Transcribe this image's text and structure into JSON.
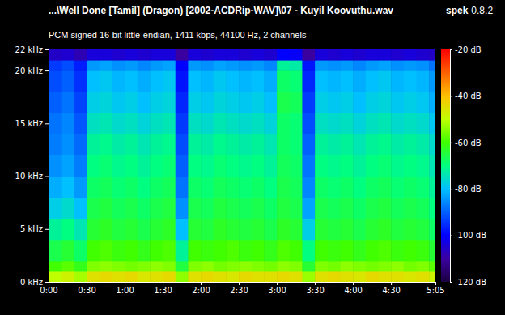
{
  "chart_data": {
    "type": "heatmap",
    "title": "...\\Well Done [Tamil] (Dragon) [2002-ACDRip-WAV]\\07 - Kuyil Koovuthu.wav",
    "subtitle": "PCM signed 16-bit little-endian, 1411 kbps, 44100 Hz, 2 channels",
    "annotations": [
      "spek",
      "0.8.2"
    ],
    "x": [
      0,
      10,
      20,
      30,
      40,
      50,
      60,
      70,
      80,
      90,
      100,
      110,
      120,
      130,
      140,
      150,
      160,
      170,
      180,
      190,
      200,
      210,
      220,
      230,
      240,
      250,
      260,
      270,
      280,
      290,
      300
    ],
    "y": [
      0,
      1,
      2,
      4,
      6,
      8,
      10,
      12,
      14,
      16,
      18,
      20,
      21
    ],
    "xlim": [
      0,
      305
    ],
    "ylim": [
      0,
      22
    ],
    "xticks": [
      {
        "value": 0,
        "label": "0:00"
      },
      {
        "value": 30,
        "label": "0:30"
      },
      {
        "value": 60,
        "label": "1:00"
      },
      {
        "value": 90,
        "label": "1:30"
      },
      {
        "value": 120,
        "label": "2:00"
      },
      {
        "value": 150,
        "label": "2:30"
      },
      {
        "value": 180,
        "label": "3:00"
      },
      {
        "value": 210,
        "label": "3:30"
      },
      {
        "value": 240,
        "label": "4:00"
      },
      {
        "value": 270,
        "label": "4:30"
      },
      {
        "value": 305,
        "label": "5:05"
      }
    ],
    "yticks": [
      {
        "value": 0,
        "label": "0 kHz"
      },
      {
        "value": 5,
        "label": "5 kHz"
      },
      {
        "value": 10,
        "label": "10 kHz"
      },
      {
        "value": 15,
        "label": "15 kHz"
      },
      {
        "value": 20,
        "label": "20 kHz"
      },
      {
        "value": 22,
        "label": "22 kHz"
      }
    ],
    "values": [
      [
        -50,
        -48,
        -52,
        -45,
        -44,
        -45,
        -44,
        -46,
        -45,
        -44,
        -54,
        -45,
        -44,
        -45,
        -46,
        -44,
        -45,
        -45,
        -44,
        -45,
        -53,
        -45,
        -44,
        -45,
        -46,
        -44,
        -45,
        -45,
        -46,
        -45,
        -48
      ],
      [
        -60,
        -58,
        -62,
        -55,
        -54,
        -55,
        -56,
        -55,
        -54,
        -55,
        -65,
        -55,
        -54,
        -56,
        -55,
        -54,
        -55,
        -56,
        -54,
        -55,
        -64,
        -55,
        -56,
        -54,
        -55,
        -56,
        -55,
        -54,
        -56,
        -55,
        -58
      ],
      [
        -66,
        -64,
        -68,
        -60,
        -59,
        -61,
        -60,
        -62,
        -60,
        -59,
        -72,
        -60,
        -61,
        -60,
        -59,
        -61,
        -60,
        -62,
        -59,
        -60,
        -70,
        -60,
        -61,
        -60,
        -62,
        -60,
        -59,
        -61,
        -60,
        -61,
        -64
      ],
      [
        -72,
        -70,
        -74,
        -64,
        -63,
        -65,
        -64,
        -66,
        -64,
        -63,
        -80,
        -64,
        -65,
        -63,
        -64,
        -65,
        -64,
        -66,
        -63,
        -64,
        -78,
        -64,
        -65,
        -64,
        -66,
        -64,
        -63,
        -65,
        -64,
        -65,
        -68
      ],
      [
        -78,
        -76,
        -80,
        -66,
        -65,
        -67,
        -66,
        -68,
        -66,
        -65,
        -85,
        -66,
        -67,
        -65,
        -66,
        -67,
        -66,
        -68,
        -65,
        -66,
        -83,
        -66,
        -67,
        -66,
        -68,
        -66,
        -65,
        -67,
        -66,
        -67,
        -70
      ],
      [
        -82,
        -80,
        -84,
        -68,
        -67,
        -69,
        -68,
        -70,
        -68,
        -67,
        -88,
        -68,
        -69,
        -67,
        -68,
        -69,
        -68,
        -70,
        -66,
        -67,
        -86,
        -68,
        -69,
        -68,
        -70,
        -68,
        -67,
        -69,
        -68,
        -69,
        -72
      ],
      [
        -85,
        -83,
        -87,
        -70,
        -69,
        -71,
        -70,
        -72,
        -70,
        -69,
        -90,
        -70,
        -71,
        -69,
        -70,
        -71,
        -70,
        -72,
        -67,
        -68,
        -88,
        -70,
        -71,
        -70,
        -72,
        -70,
        -69,
        -71,
        -70,
        -71,
        -74
      ],
      [
        -87,
        -85,
        -89,
        -72,
        -71,
        -73,
        -72,
        -74,
        -72,
        -71,
        -92,
        -72,
        -73,
        -71,
        -72,
        -73,
        -72,
        -74,
        -68,
        -69,
        -90,
        -72,
        -73,
        -72,
        -74,
        -72,
        -71,
        -73,
        -72,
        -73,
        -76
      ],
      [
        -88,
        -86,
        -91,
        -75,
        -74,
        -76,
        -75,
        -77,
        -75,
        -74,
        -94,
        -75,
        -76,
        -74,
        -75,
        -76,
        -75,
        -77,
        -68,
        -69,
        -92,
        -75,
        -76,
        -75,
        -77,
        -75,
        -74,
        -76,
        -75,
        -76,
        -79
      ],
      [
        -90,
        -88,
        -93,
        -78,
        -77,
        -79,
        -78,
        -80,
        -78,
        -77,
        -96,
        -78,
        -79,
        -77,
        -78,
        -79,
        -78,
        -80,
        -66,
        -67,
        -94,
        -78,
        -79,
        -78,
        -80,
        -78,
        -77,
        -79,
        -78,
        -79,
        -82
      ],
      [
        -92,
        -90,
        -95,
        -80,
        -79,
        -81,
        -80,
        -82,
        -80,
        -79,
        -98,
        -80,
        -81,
        -79,
        -80,
        -81,
        -80,
        -82,
        -68,
        -69,
        -96,
        -80,
        -81,
        -80,
        -82,
        -80,
        -79,
        -81,
        -80,
        -81,
        -84
      ],
      [
        -94,
        -92,
        -97,
        -84,
        -83,
        -85,
        -84,
        -86,
        -84,
        -83,
        -100,
        -84,
        -85,
        -83,
        -84,
        -85,
        -84,
        -86,
        -72,
        -73,
        -98,
        -84,
        -85,
        -84,
        -86,
        -84,
        -83,
        -85,
        -84,
        -85,
        -88
      ],
      [
        -106,
        -105,
        -108,
        -104,
        -104,
        -105,
        -104,
        -105,
        -104,
        -104,
        -110,
        -104,
        -105,
        -104,
        -104,
        -105,
        -104,
        -105,
        -100,
        -101,
        -110,
        -104,
        -105,
        -104,
        -105,
        -104,
        -104,
        -105,
        -104,
        -105,
        -106
      ]
    ],
    "colorbar": {
      "range": [
        -120,
        -20
      ],
      "ticks": [
        {
          "value": -20,
          "label": "-20 dB"
        },
        {
          "value": -40,
          "label": "-40 dB"
        },
        {
          "value": -60,
          "label": "-60 dB"
        },
        {
          "value": -80,
          "label": "-80 dB"
        },
        {
          "value": -100,
          "label": "-100 dB"
        },
        {
          "value": -120,
          "label": "-120 dB"
        }
      ]
    }
  }
}
